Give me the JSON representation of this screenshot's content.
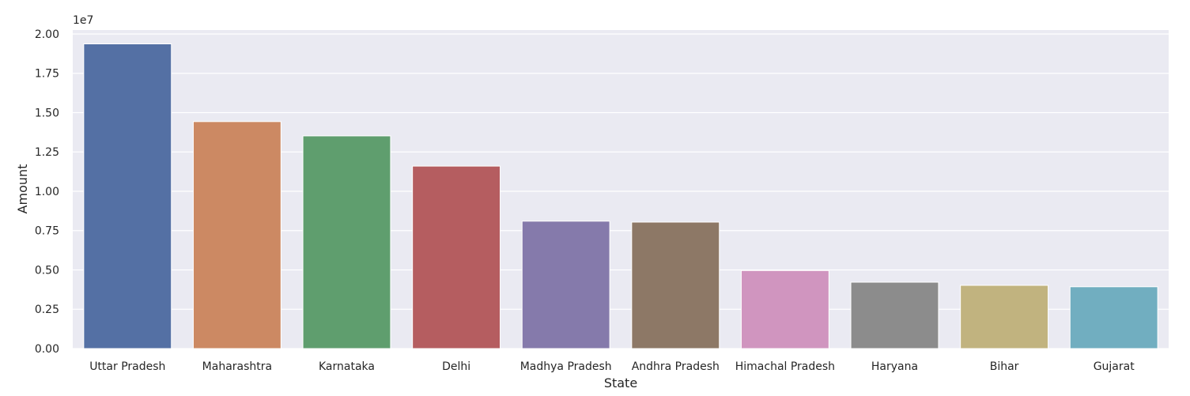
{
  "chart_data": {
    "type": "bar",
    "title": "",
    "xlabel": "State",
    "ylabel": "Amount",
    "y_offset_label": "1e7",
    "categories": [
      "Uttar Pradesh",
      "Maharashtra",
      "Karnataka",
      "Delhi",
      "Madhya Pradesh",
      "Andhra Pradesh",
      "Himachal Pradesh",
      "Haryana",
      "Bihar",
      "Gujarat"
    ],
    "values": [
      19370000,
      14430000,
      13520000,
      11600000,
      8100000,
      8040000,
      4960000,
      4220000,
      4020000,
      3930000
    ],
    "ylim": [
      0,
      20250000
    ],
    "yticks": [
      0,
      2500000,
      5000000,
      7500000,
      10000000,
      12500000,
      15000000,
      17500000,
      20000000
    ],
    "ytick_labels": [
      "0.00",
      "0.25",
      "0.50",
      "0.75",
      "1.00",
      "1.25",
      "1.50",
      "1.75",
      "2.00"
    ],
    "grid": true,
    "legend": "none",
    "colors": [
      "#5470a4",
      "#cc8963",
      "#5f9e6e",
      "#b55d60",
      "#857aab",
      "#8d7866",
      "#d095bf",
      "#8c8c8c",
      "#c1b37f",
      "#71aec0"
    ],
    "background": "#eaeaf2"
  }
}
